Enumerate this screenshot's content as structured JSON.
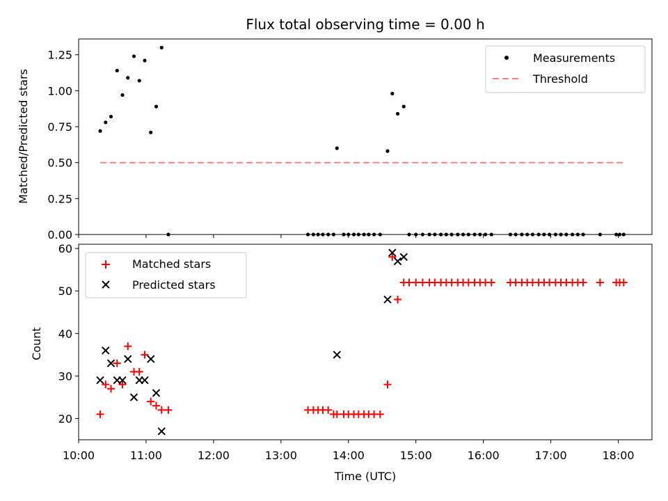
{
  "chart_data": [
    {
      "type": "scatter",
      "title": "Flux total observing time = 0.00 h",
      "xlabel": "",
      "ylabel": "Matched/Predicted stars",
      "x_unit": "hours (UTC)",
      "xlim": [
        10.0,
        18.5
      ],
      "ylim": [
        0.0,
        1.36
      ],
      "yticks": [
        "0.00",
        "0.25",
        "0.50",
        "0.75",
        "1.00",
        "1.25"
      ],
      "legend_position": "top-right",
      "series": [
        {
          "name": "Measurements",
          "kind": "scatter",
          "color": "#000000",
          "points": [
            [
              10.32,
              0.72
            ],
            [
              10.4,
              0.78
            ],
            [
              10.48,
              0.82
            ],
            [
              10.57,
              1.14
            ],
            [
              10.65,
              0.97
            ],
            [
              10.73,
              1.09
            ],
            [
              10.82,
              1.24
            ],
            [
              10.9,
              1.07
            ],
            [
              10.98,
              1.21
            ],
            [
              11.07,
              0.71
            ],
            [
              11.15,
              0.89
            ],
            [
              11.23,
              1.3
            ],
            [
              11.33,
              0.0
            ],
            [
              13.4,
              0.0
            ],
            [
              13.48,
              0.0
            ],
            [
              13.55,
              0.0
            ],
            [
              13.62,
              0.0
            ],
            [
              13.7,
              0.0
            ],
            [
              13.78,
              0.0
            ],
            [
              13.83,
              0.6
            ],
            [
              13.93,
              0.0
            ],
            [
              14.0,
              0.0
            ],
            [
              14.08,
              0.0
            ],
            [
              14.15,
              0.0
            ],
            [
              14.23,
              0.0
            ],
            [
              14.3,
              0.0
            ],
            [
              14.38,
              0.0
            ],
            [
              14.47,
              0.0
            ],
            [
              14.58,
              0.58
            ],
            [
              14.65,
              0.98
            ],
            [
              14.73,
              0.84
            ],
            [
              14.82,
              0.89
            ],
            [
              14.9,
              0.0
            ],
            [
              15.0,
              0.0
            ],
            [
              15.1,
              0.0
            ],
            [
              15.2,
              0.0
            ],
            [
              15.28,
              0.0
            ],
            [
              15.37,
              0.0
            ],
            [
              15.45,
              0.0
            ],
            [
              15.53,
              0.0
            ],
            [
              15.62,
              0.0
            ],
            [
              15.7,
              0.0
            ],
            [
              15.78,
              0.0
            ],
            [
              15.87,
              0.0
            ],
            [
              15.95,
              0.0
            ],
            [
              16.03,
              0.0
            ],
            [
              16.12,
              0.0
            ],
            [
              16.4,
              0.0
            ],
            [
              16.48,
              0.0
            ],
            [
              16.57,
              0.0
            ],
            [
              16.65,
              0.0
            ],
            [
              16.73,
              0.0
            ],
            [
              16.82,
              0.0
            ],
            [
              16.9,
              0.0
            ],
            [
              16.98,
              0.0
            ],
            [
              17.07,
              0.0
            ],
            [
              17.15,
              0.0
            ],
            [
              17.23,
              0.0
            ],
            [
              17.32,
              0.0
            ],
            [
              17.4,
              0.0
            ],
            [
              17.48,
              0.0
            ],
            [
              17.73,
              0.0
            ],
            [
              17.97,
              0.0
            ],
            [
              18.02,
              0.0
            ],
            [
              18.08,
              0.0
            ]
          ]
        },
        {
          "name": "Threshold",
          "kind": "line",
          "color": "#ff8080",
          "x": [
            10.32,
            18.08
          ],
          "y": [
            0.5,
            0.5
          ]
        }
      ]
    },
    {
      "type": "scatter",
      "title": "",
      "xlabel": "Time (UTC)",
      "ylabel": "Count",
      "x_unit": "hours (UTC)",
      "xlim": [
        10.0,
        18.5
      ],
      "ylim": [
        15,
        61
      ],
      "xticks": [
        "10:00",
        "11:00",
        "12:00",
        "13:00",
        "14:00",
        "15:00",
        "16:00",
        "17:00",
        "18:00"
      ],
      "yticks": [
        "20",
        "30",
        "40",
        "50",
        "60"
      ],
      "legend_position": "top-left",
      "series": [
        {
          "name": "Matched stars",
          "kind": "scatter",
          "marker": "plus",
          "color": "#ff0000",
          "points": [
            [
              10.32,
              21
            ],
            [
              10.4,
              28
            ],
            [
              10.48,
              27
            ],
            [
              10.57,
              33
            ],
            [
              10.65,
              28
            ],
            [
              10.73,
              37
            ],
            [
              10.82,
              31
            ],
            [
              10.9,
              31
            ],
            [
              10.98,
              35
            ],
            [
              11.07,
              24
            ],
            [
              11.15,
              23
            ],
            [
              11.23,
              22
            ],
            [
              11.33,
              22
            ],
            [
              13.4,
              22
            ],
            [
              13.48,
              22
            ],
            [
              13.55,
              22
            ],
            [
              13.62,
              22
            ],
            [
              13.7,
              22
            ],
            [
              13.78,
              21
            ],
            [
              13.83,
              21
            ],
            [
              13.93,
              21
            ],
            [
              14.0,
              21
            ],
            [
              14.08,
              21
            ],
            [
              14.15,
              21
            ],
            [
              14.23,
              21
            ],
            [
              14.3,
              21
            ],
            [
              14.38,
              21
            ],
            [
              14.47,
              21
            ],
            [
              14.58,
              28
            ],
            [
              14.65,
              58
            ],
            [
              14.73,
              48
            ],
            [
              14.82,
              52
            ],
            [
              14.9,
              52
            ],
            [
              15.0,
              52
            ],
            [
              15.1,
              52
            ],
            [
              15.2,
              52
            ],
            [
              15.28,
              52
            ],
            [
              15.37,
              52
            ],
            [
              15.45,
              52
            ],
            [
              15.53,
              52
            ],
            [
              15.62,
              52
            ],
            [
              15.7,
              52
            ],
            [
              15.78,
              52
            ],
            [
              15.87,
              52
            ],
            [
              15.95,
              52
            ],
            [
              16.03,
              52
            ],
            [
              16.12,
              52
            ],
            [
              16.4,
              52
            ],
            [
              16.48,
              52
            ],
            [
              16.57,
              52
            ],
            [
              16.65,
              52
            ],
            [
              16.73,
              52
            ],
            [
              16.82,
              52
            ],
            [
              16.9,
              52
            ],
            [
              16.98,
              52
            ],
            [
              17.07,
              52
            ],
            [
              17.15,
              52
            ],
            [
              17.23,
              52
            ],
            [
              17.32,
              52
            ],
            [
              17.4,
              52
            ],
            [
              17.48,
              52
            ],
            [
              17.73,
              52
            ],
            [
              17.97,
              52
            ],
            [
              18.02,
              52
            ],
            [
              18.08,
              52
            ]
          ]
        },
        {
          "name": "Predicted stars",
          "kind": "scatter",
          "marker": "x",
          "color": "#000000",
          "points": [
            [
              10.32,
              29
            ],
            [
              10.4,
              36
            ],
            [
              10.48,
              33
            ],
            [
              10.57,
              29
            ],
            [
              10.65,
              29
            ],
            [
              10.73,
              34
            ],
            [
              10.82,
              25
            ],
            [
              10.9,
              29
            ],
            [
              10.98,
              29
            ],
            [
              11.07,
              34
            ],
            [
              11.15,
              26
            ],
            [
              11.23,
              17
            ],
            [
              13.83,
              35
            ],
            [
              14.58,
              48
            ],
            [
              14.65,
              59
            ],
            [
              14.73,
              57
            ],
            [
              14.82,
              58
            ]
          ]
        }
      ]
    }
  ]
}
